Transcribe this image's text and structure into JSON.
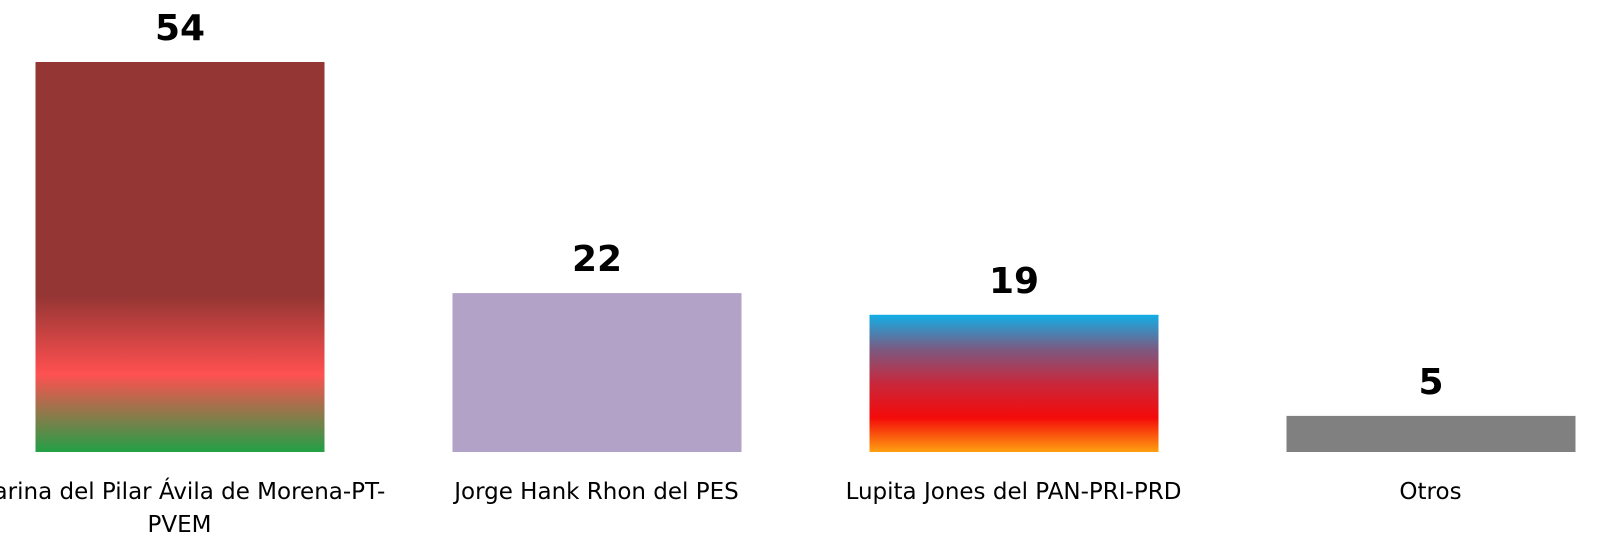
{
  "chart_data": {
    "type": "bar",
    "categories": [
      "Marina del Pilar Ávila de Morena-PT-PVEM",
      "Jorge Hank Rhon del PES",
      "Lupita Jones del PAN-PRI-PRD",
      "Otros"
    ],
    "values": [
      54,
      22,
      19,
      5
    ],
    "colors": [
      [
        "#943634",
        "#943634",
        "#943634",
        "#943634",
        "#ff5050",
        "#22a046"
      ],
      [
        "#b3a2c7",
        "#b3a2c7"
      ],
      [
        "#12aee6",
        "#7b5a82",
        "#c8283c",
        "#f40a0a",
        "#ffa010"
      ],
      [
        "#808080",
        "#808080"
      ]
    ],
    "ylim": [
      0,
      54
    ]
  }
}
